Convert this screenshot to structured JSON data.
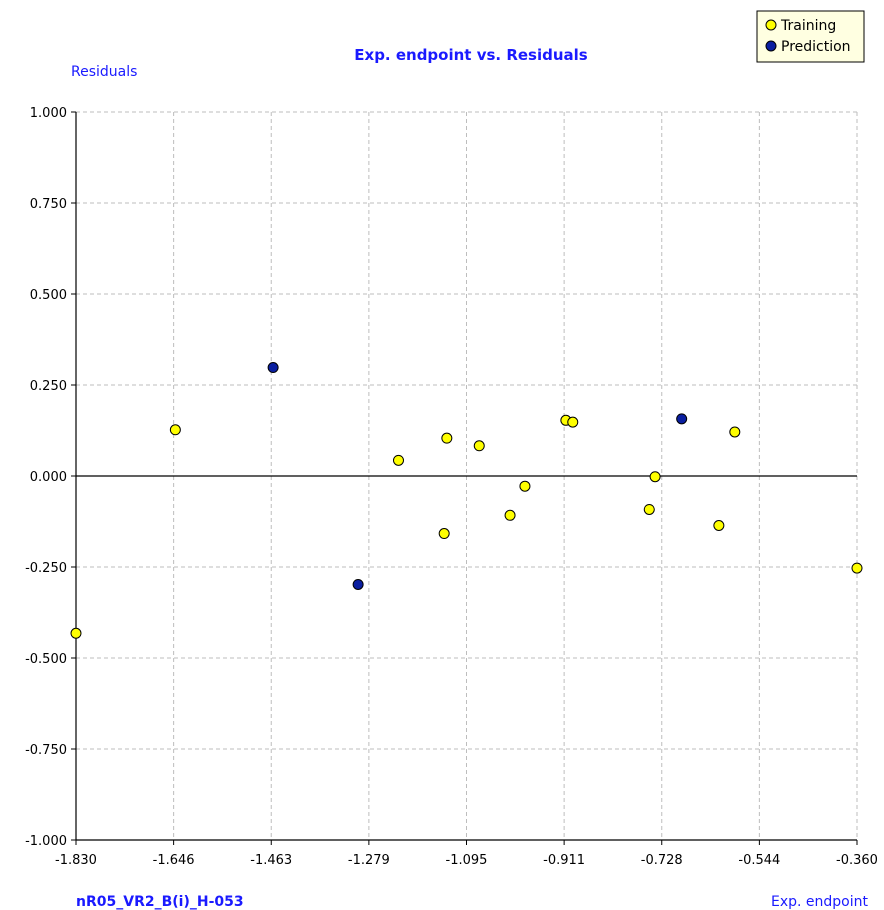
{
  "chart_data": {
    "type": "scatter",
    "title": "Exp. endpoint vs. Residuals",
    "xlabel": "Exp. endpoint",
    "ylabel": "Residuals",
    "caption": "nR05_VR2_B(i)_H-053",
    "xlim": [
      -1.83,
      -0.36
    ],
    "ylim": [
      -1.0,
      1.0
    ],
    "x_ticks": [
      "-1.830",
      "-1.646",
      "-1.463",
      "-1.279",
      "-1.095",
      "-0.911",
      "-0.728",
      "-0.544",
      "-0.360"
    ],
    "y_ticks": [
      "1.000",
      "0.750",
      "0.500",
      "0.250",
      "0.000",
      "-0.250",
      "-0.500",
      "-0.750",
      "-1.000"
    ],
    "grid": true,
    "legend_position": "top-right",
    "series": [
      {
        "name": "Training",
        "color": "#ffff00",
        "points": [
          {
            "x": -1.83,
            "y": -0.432
          },
          {
            "x": -1.643,
            "y": 0.127
          },
          {
            "x": -1.223,
            "y": 0.043
          },
          {
            "x": -1.137,
            "y": -0.158
          },
          {
            "x": -1.132,
            "y": 0.104
          },
          {
            "x": -1.071,
            "y": 0.083
          },
          {
            "x": -1.013,
            "y": -0.108
          },
          {
            "x": -0.985,
            "y": -0.028
          },
          {
            "x": -0.908,
            "y": 0.153
          },
          {
            "x": -0.895,
            "y": 0.148
          },
          {
            "x": -0.751,
            "y": -0.092
          },
          {
            "x": -0.74,
            "y": -0.002
          },
          {
            "x": -0.62,
            "y": -0.136
          },
          {
            "x": -0.59,
            "y": 0.121
          },
          {
            "x": -0.36,
            "y": -0.253
          }
        ]
      },
      {
        "name": "Prediction",
        "color": "#0a1ea0",
        "points": [
          {
            "x": -1.459,
            "y": 0.298
          },
          {
            "x": -1.299,
            "y": -0.298
          },
          {
            "x": -0.69,
            "y": 0.157
          }
        ]
      }
    ]
  }
}
